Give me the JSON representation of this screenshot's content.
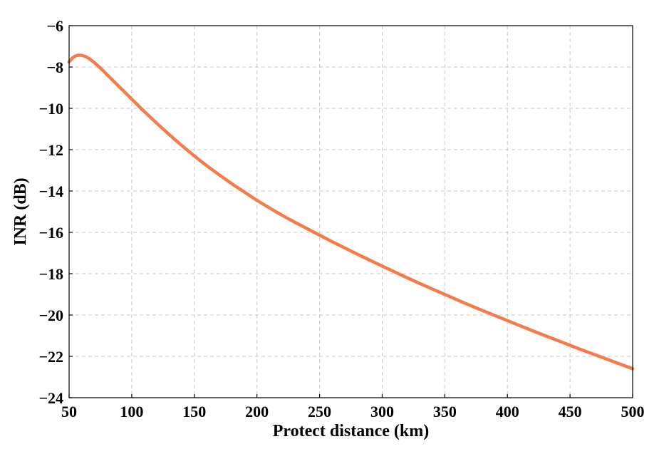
{
  "chart_data": {
    "type": "line",
    "title": "",
    "xlabel": "Protect distance (km)",
    "ylabel": "INR (dB)",
    "xlim": [
      50,
      500
    ],
    "ylim": [
      -24,
      -6
    ],
    "xticks": [
      50,
      100,
      150,
      200,
      250,
      300,
      350,
      400,
      450,
      500
    ],
    "yticks": [
      -24,
      -22,
      -20,
      -18,
      -16,
      -14,
      -12,
      -10,
      -8,
      -6
    ],
    "xtick_labels": [
      "50",
      "100",
      "150",
      "200",
      "250",
      "300",
      "350",
      "400",
      "450",
      "500"
    ],
    "ytick_labels": [
      "−24",
      "−22",
      "−20",
      "−18",
      "−16",
      "−14",
      "−12",
      "−10",
      "−8",
      "−6"
    ],
    "grid": true,
    "legend": "none",
    "series": [
      {
        "color": "#f47c4a",
        "x": [
          50,
          53,
          56,
          59,
          62,
          65,
          70,
          75,
          80,
          90,
          100,
          110,
          120,
          130,
          140,
          150,
          160,
          170,
          180,
          190,
          200,
          220,
          240,
          260,
          280,
          300,
          320,
          340,
          360,
          380,
          400,
          420,
          440,
          460,
          480,
          500
        ],
        "y": [
          -7.75,
          -7.55,
          -7.45,
          -7.43,
          -7.47,
          -7.56,
          -7.78,
          -8.05,
          -8.35,
          -8.95,
          -9.55,
          -10.15,
          -10.72,
          -11.27,
          -11.8,
          -12.3,
          -12.78,
          -13.22,
          -13.65,
          -14.05,
          -14.45,
          -15.17,
          -15.82,
          -16.45,
          -17.05,
          -17.63,
          -18.2,
          -18.74,
          -19.27,
          -19.78,
          -20.27,
          -20.76,
          -21.23,
          -21.7,
          -22.15,
          -22.6
        ]
      }
    ]
  }
}
